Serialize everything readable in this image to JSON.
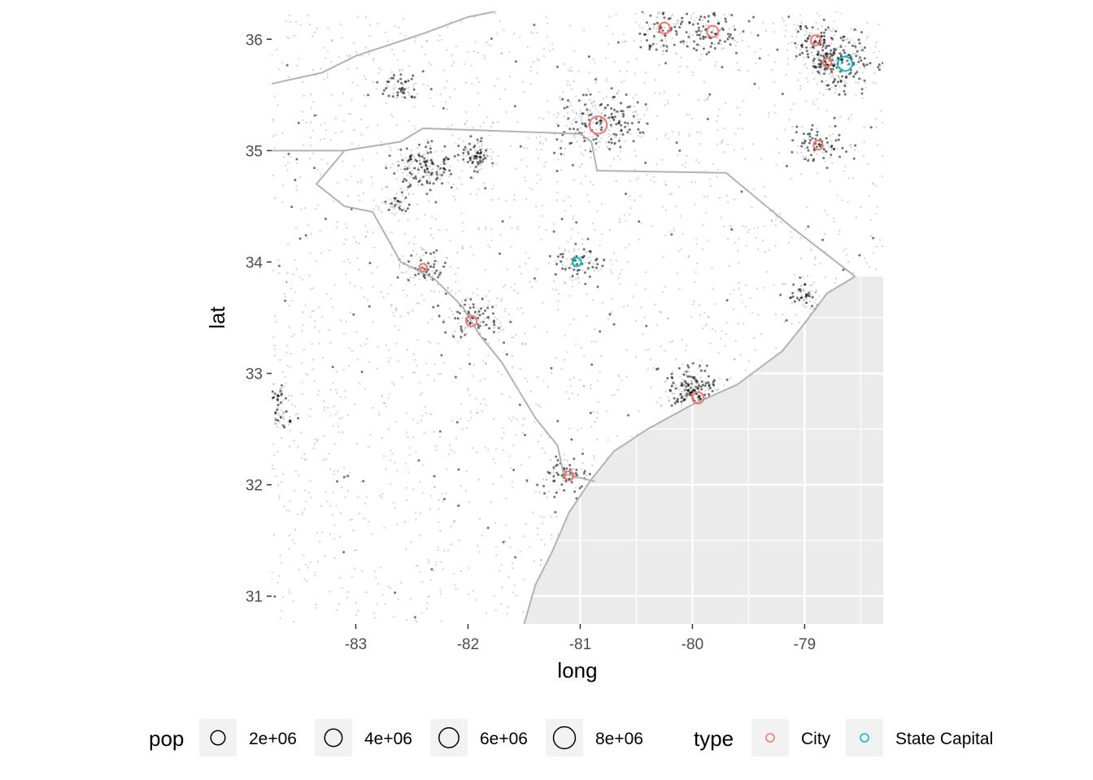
{
  "chart_data": {
    "type": "scatter",
    "title": "",
    "xlabel": "long",
    "ylabel": "lat",
    "xlim": [
      -83.75,
      -78.3
    ],
    "ylim": [
      30.75,
      36.25
    ],
    "x_ticks": [
      -83,
      -82,
      -81,
      -80,
      -79
    ],
    "y_ticks": [
      31,
      32,
      33,
      34,
      35,
      36
    ],
    "x_tick_labels": [
      "-83",
      "-82",
      "-81",
      "-80",
      "-79"
    ],
    "y_tick_labels": [
      "31",
      "32",
      "33",
      "34",
      "35",
      "36"
    ],
    "grid": true,
    "background_color": "#ebebeb",
    "land_color": "#ffffff",
    "border_color": "#b3b3b3",
    "dot_color": "#000000",
    "coastline": [
      [
        -78.55,
        33.87
      ],
      [
        -78.8,
        33.72
      ],
      [
        -79.0,
        33.45
      ],
      [
        -79.2,
        33.2
      ],
      [
        -79.6,
        32.9
      ],
      [
        -80.0,
        32.72
      ],
      [
        -80.4,
        32.5
      ],
      [
        -80.7,
        32.3
      ],
      [
        -80.9,
        32.05
      ],
      [
        -81.1,
        31.75
      ],
      [
        -81.25,
        31.4
      ],
      [
        -81.4,
        31.1
      ],
      [
        -81.5,
        30.75
      ]
    ],
    "borders": [
      [
        [
          -83.75,
          35.6
        ],
        [
          -83.3,
          35.7
        ],
        [
          -83.0,
          35.85
        ],
        [
          -82.7,
          35.95
        ],
        [
          -82.4,
          36.05
        ],
        [
          -82.0,
          36.2
        ],
        [
          -81.75,
          36.25
        ]
      ],
      [
        [
          -83.75,
          35.0
        ],
        [
          -83.1,
          35.0
        ],
        [
          -82.6,
          35.08
        ],
        [
          -82.4,
          35.2
        ],
        [
          -81.0,
          35.15
        ],
        [
          -80.9,
          35.08
        ],
        [
          -80.85,
          34.82
        ],
        [
          -79.7,
          34.8
        ],
        [
          -79.1,
          34.3
        ],
        [
          -78.55,
          33.87
        ]
      ],
      [
        [
          -83.1,
          35.0
        ],
        [
          -83.35,
          34.7
        ],
        [
          -83.1,
          34.5
        ],
        [
          -82.85,
          34.45
        ],
        [
          -82.6,
          34.0
        ],
        [
          -82.3,
          33.85
        ],
        [
          -82.05,
          33.6
        ],
        [
          -81.9,
          33.35
        ],
        [
          -81.7,
          33.1
        ],
        [
          -81.55,
          32.85
        ],
        [
          -81.4,
          32.6
        ],
        [
          -81.2,
          32.35
        ],
        [
          -81.15,
          32.1
        ],
        [
          -80.87,
          32.03
        ]
      ]
    ],
    "series": [
      {
        "name": "City",
        "color": "#f8766d",
        "points": [
          {
            "x": -80.84,
            "y": 35.23,
            "pop": 2100000
          },
          {
            "x": -80.25,
            "y": 36.1,
            "pop": 650000
          },
          {
            "x": -79.82,
            "y": 36.07,
            "pop": 720000
          },
          {
            "x": -78.9,
            "y": 35.99,
            "pop": 500000
          },
          {
            "x": -78.8,
            "y": 35.79,
            "pop": 280000
          },
          {
            "x": -78.88,
            "y": 35.05,
            "pop": 370000
          },
          {
            "x": -82.4,
            "y": 33.95,
            "pop": 200000
          },
          {
            "x": -81.97,
            "y": 33.47,
            "pop": 560000
          },
          {
            "x": -79.95,
            "y": 32.78,
            "pop": 700000
          },
          {
            "x": -81.1,
            "y": 32.08,
            "pop": 370000
          }
        ]
      },
      {
        "name": "State Capital",
        "color": "#00bfc4",
        "points": [
          {
            "x": -78.64,
            "y": 35.78,
            "pop": 1300000
          },
          {
            "x": -81.03,
            "y": 34.0,
            "pop": 300000
          }
        ]
      }
    ],
    "legend": {
      "position": "bottom",
      "pop": {
        "title": "pop",
        "items": [
          {
            "label": "2e+06",
            "value": 2000000
          },
          {
            "label": "4e+06",
            "value": 4000000
          },
          {
            "label": "6e+06",
            "value": 6000000
          },
          {
            "label": "8e+06",
            "value": 8000000
          }
        ]
      },
      "type": {
        "title": "type",
        "items": [
          {
            "label": "City",
            "color": "#f8766d"
          },
          {
            "label": "State Capital",
            "color": "#00bfc4"
          }
        ]
      }
    }
  }
}
